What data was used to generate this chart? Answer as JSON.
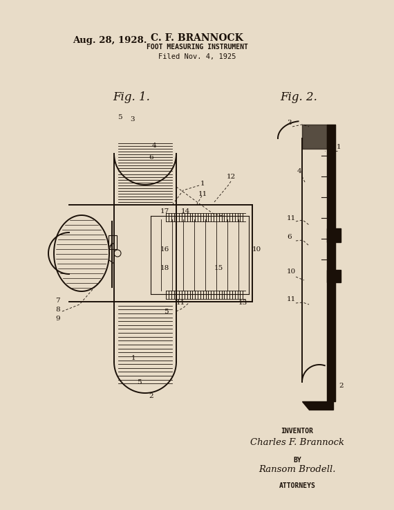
{
  "bg_color": "#e8dcc8",
  "line_color": "#1a1008",
  "date_text": "Aug. 28, 1928.",
  "inventor_name": "C. F. BRANNOCK",
  "title_text": "FOOT MEASURING INSTRUMENT",
  "filed_text": "Filed Nov. 4, 1925",
  "fig1_label": "Fig. 1.",
  "fig2_label": "Fig. 2.",
  "inventor_label": "INVENTOR",
  "by_label": "BY",
  "attorneys_label": "ATTORNEYS",
  "inventor_sig": "Charles F. Brannock",
  "attorney_sig": "Ransom Brodell.",
  "figsize": [
    5.7,
    7.37
  ],
  "dpi": 100
}
